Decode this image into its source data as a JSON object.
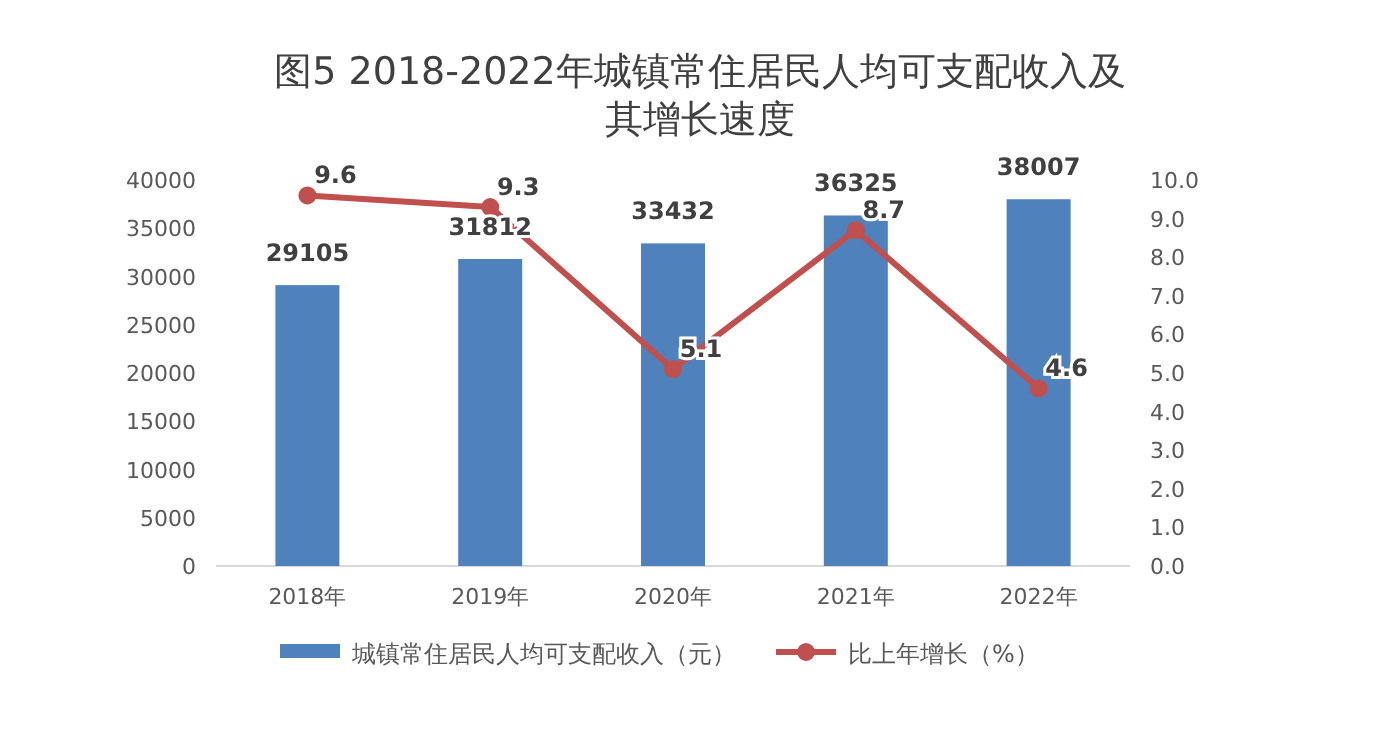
{
  "chart_data": {
    "type": "bar",
    "title": "图5 2018-2022年城镇常住居民人均可支配收入及其增长速度",
    "categories": [
      "2018年",
      "2019年",
      "2020年",
      "2021年",
      "2022年"
    ],
    "series": [
      {
        "name": "城镇常住居民人均可支配收入（元）",
        "color": "#4f81bd",
        "values": [
          29105,
          31812,
          33432,
          36325,
          38007
        ]
      },
      {
        "name": "比上年增长（%）",
        "type": "line",
        "axis": "y2",
        "color": "#c0504d",
        "values": [
          9.6,
          9.3,
          5.1,
          8.7,
          4.6
        ]
      }
    ],
    "ylim": [
      0,
      40000
    ],
    "yticks": [
      0,
      5000,
      10000,
      15000,
      20000,
      25000,
      30000,
      35000,
      40000
    ],
    "y2lim": [
      0,
      10
    ],
    "y2ticks": [
      {
        "value": 0,
        "label": "0.0"
      },
      {
        "value": 1,
        "label": "1.0"
      },
      {
        "value": 2,
        "label": "2.0"
      },
      {
        "value": 3,
        "label": "3.0"
      },
      {
        "value": 4,
        "label": "4.0"
      },
      {
        "value": 5,
        "label": "5.0"
      },
      {
        "value": 6,
        "label": "6.0"
      },
      {
        "value": 7,
        "label": "7.0"
      },
      {
        "value": 8,
        "label": "8.0"
      },
      {
        "value": 9,
        "label": "9.0"
      },
      {
        "value": 10,
        "label": "10.0"
      }
    ],
    "data_labels": true,
    "marker": "circle",
    "legend": "bottom"
  }
}
